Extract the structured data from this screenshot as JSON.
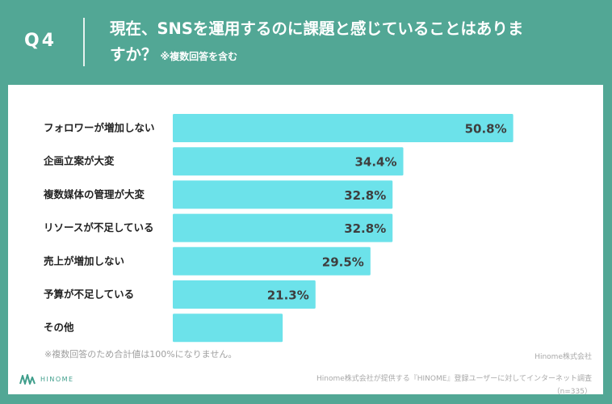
{
  "header": {
    "qnum": "Q4",
    "question_line1": "現在、SNSを運用するのに課題と感じていることはありま",
    "question_line2": "すか？",
    "question_note": "※複数回答を含む"
  },
  "chart_data": {
    "type": "bar",
    "orientation": "horizontal",
    "categories": [
      "フォロワーが増加しない",
      "企画立案が大変",
      "複数媒体の管理が大変",
      "リソースが不足している",
      "売上が増加しない",
      "予算が不足している",
      "その他"
    ],
    "values": [
      50.8,
      34.4,
      32.8,
      32.8,
      29.5,
      21.3,
      16.4
    ],
    "labels": [
      "50.8%",
      "34.4%",
      "32.8%",
      "32.8%",
      "29.5%",
      "21.3%",
      ""
    ],
    "unit": "%",
    "xlim": [
      0,
      100
    ],
    "bar_color": "#6ce2ea"
  },
  "footer": {
    "note": "※複数回答のため合計値は100%になりません。",
    "company": "Hinome株式会社",
    "source": "Hinome株式会社が提供する『HINOME』登録ユーザーに対してインターネット調査",
    "sample": "（n=335）",
    "logo_text": "HINOME"
  },
  "colors": {
    "background": "#52a795",
    "bar": "#6ce2ea",
    "card": "#ffffff"
  }
}
